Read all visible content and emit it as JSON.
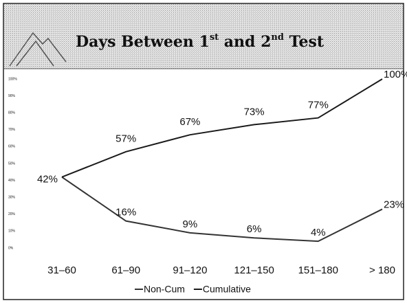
{
  "chart_data": {
    "type": "line",
    "title": [
      "Days Between 1",
      "st",
      " and 2",
      "nd",
      " Test"
    ],
    "categories": [
      "31–60",
      "61–90",
      "91–120",
      "121–150",
      "151–180",
      "> 180"
    ],
    "series": [
      {
        "name": "Non-Cum",
        "color": "#333333",
        "values": [
          42,
          16,
          9,
          6,
          4,
          23
        ],
        "value_labels": [
          "42%",
          "16%",
          "9%",
          "6%",
          "4%",
          "23%"
        ]
      },
      {
        "name": "Cumulative",
        "color": "#1a1a1a",
        "values": [
          42,
          57,
          67,
          73,
          77,
          100
        ],
        "value_labels": [
          null,
          "57%",
          "67%",
          "73%",
          "77%",
          "100%"
        ]
      }
    ],
    "ylim": [
      0,
      100
    ],
    "yticks": [
      {
        "value": 0,
        "label": "0%"
      },
      {
        "value": 10,
        "label": "10%"
      },
      {
        "value": 20,
        "label": "20%"
      },
      {
        "value": 30,
        "label": "30%"
      },
      {
        "value": 40,
        "label": "40%"
      },
      {
        "value": 50,
        "label": "50%"
      },
      {
        "value": 60,
        "label": "60%"
      },
      {
        "value": 70,
        "label": "70%"
      },
      {
        "value": 80,
        "label": "80%"
      },
      {
        "value": 90,
        "label": "90%"
      },
      {
        "value": 100,
        "label": "100%"
      }
    ],
    "grid": false,
    "legend": "bottom"
  }
}
